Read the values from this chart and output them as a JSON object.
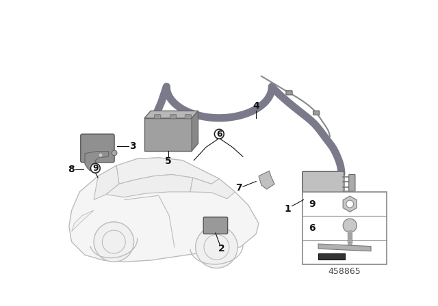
{
  "bg_color": "#ffffff",
  "part_number": "458865",
  "antenna_color": "#7a7a8a",
  "antenna_lw": 8,
  "wire_color": "#aaaaaa",
  "car_edge_color": "#bbbbbb",
  "car_face_color": "#f5f5f5",
  "part_fill": "#909090",
  "part_edge": "#555555",
  "label_color": "#111111",
  "line_color": "#111111",
  "inset_border": "#888888",
  "part5_fill": "#aaaaaa",
  "part3_fill": "#888888",
  "part7_fill": "#b0b0b0",
  "part8_fill": "#888888"
}
